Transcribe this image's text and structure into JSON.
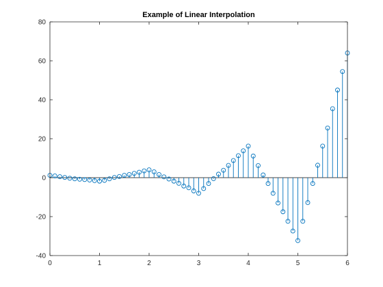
{
  "chart_data": {
    "type": "stem",
    "title": "Example of Linear Interpolation",
    "xlabel": "",
    "ylabel": "",
    "xlim": [
      0,
      6
    ],
    "ylim": [
      -40,
      80
    ],
    "xticks": [
      0,
      1,
      2,
      3,
      4,
      5,
      6
    ],
    "yticks": [
      -40,
      -20,
      0,
      20,
      40,
      60,
      80
    ],
    "xtick_labels": [
      "0",
      "1",
      "2",
      "3",
      "4",
      "5",
      "6"
    ],
    "ytick_labels": [
      "-40",
      "-20",
      "0",
      "20",
      "40",
      "60",
      "80"
    ],
    "grid": false,
    "legend": "none",
    "color": "#0072bd",
    "baseline": 0,
    "series": [
      {
        "x": [
          0.0,
          0.1,
          0.2,
          0.3,
          0.4,
          0.5,
          0.6,
          0.7,
          0.8,
          0.9,
          1.0,
          1.1,
          1.2,
          1.3,
          1.4,
          1.5,
          1.6,
          1.7,
          1.8,
          1.9,
          2.0,
          2.1,
          2.2,
          2.3,
          2.4,
          2.5,
          2.6,
          2.7,
          2.8,
          2.9,
          3.0,
          3.1,
          3.2,
          3.3,
          3.4,
          3.5,
          3.6,
          3.7,
          3.8,
          3.9,
          4.0,
          4.1,
          4.2,
          4.3,
          4.4,
          4.5,
          4.6,
          4.7,
          4.8,
          4.9,
          5.0,
          5.1,
          5.2,
          5.3,
          5.4,
          5.5,
          5.6,
          5.7,
          5.8,
          5.9,
          6.0
        ],
        "values": [
          1.2,
          0.9,
          0.5,
          0.1,
          -0.3,
          -0.6,
          -0.8,
          -1.0,
          -1.2,
          -1.5,
          -1.8,
          -1.4,
          -0.6,
          0.1,
          0.6,
          1.2,
          1.6,
          2.2,
          2.8,
          3.5,
          4.0,
          3.0,
          1.6,
          0.4,
          -0.7,
          -1.8,
          -2.9,
          -4.3,
          -5.2,
          -6.8,
          -8.0,
          -5.6,
          -3.0,
          -0.5,
          1.8,
          3.8,
          6.3,
          8.8,
          11.3,
          13.8,
          16.2,
          11.1,
          6.2,
          1.4,
          -3.0,
          -8.0,
          -13.0,
          -17.5,
          -22.4,
          -27.4,
          -32.3,
          -22.4,
          -12.8,
          -3.0,
          6.4,
          16.2,
          25.5,
          35.4,
          45.0,
          54.5,
          64.0
        ]
      }
    ]
  }
}
